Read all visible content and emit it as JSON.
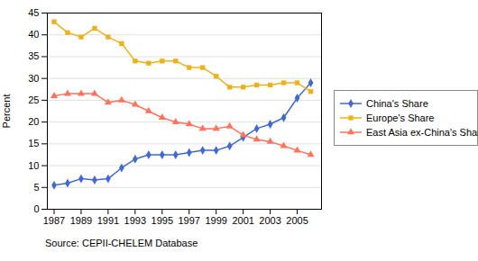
{
  "chart_data": {
    "type": "line",
    "x": [
      1987,
      1988,
      1989,
      1990,
      1991,
      1992,
      1993,
      1994,
      1995,
      1996,
      1997,
      1998,
      1999,
      2000,
      2001,
      2002,
      2003,
      2004,
      2005,
      2006
    ],
    "series": [
      {
        "name": "China's Share",
        "marker": "diamond",
        "values": [
          5.5,
          6.0,
          7.0,
          6.7,
          7.0,
          9.5,
          11.5,
          12.5,
          12.5,
          12.5,
          13.0,
          13.5,
          13.5,
          14.5,
          16.5,
          18.5,
          19.5,
          21.0,
          25.5,
          29.0
        ]
      },
      {
        "name": "Europe's Share",
        "marker": "square",
        "values": [
          43.0,
          40.5,
          39.5,
          41.5,
          39.5,
          38.0,
          34.0,
          33.5,
          34.0,
          34.0,
          32.5,
          32.5,
          30.5,
          28.0,
          28.0,
          28.5,
          28.5,
          29.0,
          29.0,
          27.0
        ]
      },
      {
        "name": "East Asia ex-China's Share",
        "marker": "triangle",
        "values": [
          26.0,
          26.5,
          26.5,
          26.5,
          24.5,
          25.0,
          24.0,
          22.5,
          21.0,
          20.0,
          19.5,
          18.5,
          18.5,
          19.0,
          17.0,
          16.0,
          15.5,
          14.5,
          13.5,
          12.5
        ]
      }
    ],
    "ylabel": "Percent",
    "ylim": [
      0,
      45
    ],
    "yticks": [
      0,
      5,
      10,
      15,
      20,
      25,
      30,
      35,
      40,
      45
    ],
    "xlim": [
      1986.5,
      2006.8
    ],
    "xticks": [
      1987,
      1989,
      1991,
      1993,
      1995,
      1997,
      1999,
      2001,
      2003,
      2005
    ],
    "grid": true,
    "legend": "right",
    "annotations": [
      "Source: CEPII-CHELEM Database"
    ]
  }
}
